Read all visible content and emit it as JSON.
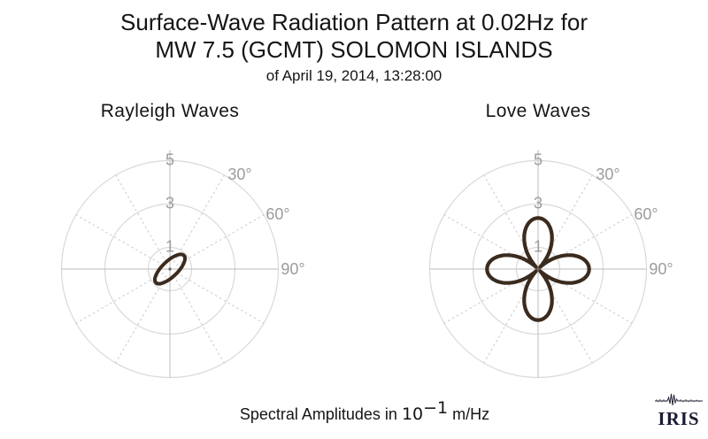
{
  "title": {
    "line1": "Surface-Wave Radiation Pattern at 0.02Hz for",
    "line2": "MW 7.5 (GCMT) SOLOMON ISLANDS",
    "line3": "of April 19, 2014, 13:28:00"
  },
  "caption": {
    "prefix": "Spectral Amplitudes in ",
    "base": "10",
    "exponent": "−1",
    "suffix": " m/Hz"
  },
  "logo": {
    "text": "IRIS",
    "icon": "seismogram-trace-icon"
  },
  "colors": {
    "background": "#ffffff",
    "pattern": "#3b2b1e",
    "grid_circle": "#d9d9d9",
    "grid_axis": "#c6c6c6",
    "grid_dotted": "#cdcdcd",
    "tick_label": "#9c9c9c",
    "center_dot": "#6e6258",
    "title_text": "#151515",
    "logo": "#1b1b33"
  },
  "chart_data": [
    {
      "type": "line",
      "projection": "polar",
      "subplot": "left",
      "title": "Rayleigh Waves",
      "r_axis": {
        "ticks": [
          1,
          3,
          5
        ],
        "tick_labels": [
          "1",
          "3",
          "5"
        ],
        "max": 5
      },
      "theta_axis": {
        "labeled_ticks_deg": [
          30,
          60,
          90
        ],
        "tick_labels": [
          "30°",
          "60°",
          "90°"
        ],
        "grid_spacing_deg": 30
      },
      "grid": "circles at r=1,3,5; solid N/S/E/W axes; dotted spokes every 30°",
      "series": {
        "name": "Rayleigh-wave spectral amplitude",
        "shape": "ellipse-lobe",
        "azimuth_deg": 46,
        "max_amplitude": 0.9,
        "min_half_width": 0.36,
        "stroke_width": 4,
        "units": "10^-1 m/Hz"
      }
    },
    {
      "type": "line",
      "projection": "polar",
      "subplot": "right",
      "title": "Love Waves",
      "r_axis": {
        "ticks": [
          1,
          3,
          5
        ],
        "tick_labels": [
          "1",
          "3",
          "5"
        ],
        "max": 5
      },
      "theta_axis": {
        "labeled_ticks_deg": [
          30,
          60,
          90
        ],
        "tick_labels": [
          "30°",
          "60°",
          "90°"
        ],
        "grid_spacing_deg": 30
      },
      "grid": "circles at r=1,3,5; solid N/S/E/W axes; dotted spokes every 30°",
      "series": {
        "name": "Love-wave spectral amplitude",
        "shape": "four-lobe-rose",
        "formula": "r = A·|cos(2(θ−φ))|",
        "amplitude": 2.35,
        "rotation_deg": 0,
        "lobe_azimuths_deg": [
          0,
          90,
          180,
          270
        ],
        "stroke_width": 4.2,
        "units": "10^-1 m/Hz"
      }
    }
  ]
}
